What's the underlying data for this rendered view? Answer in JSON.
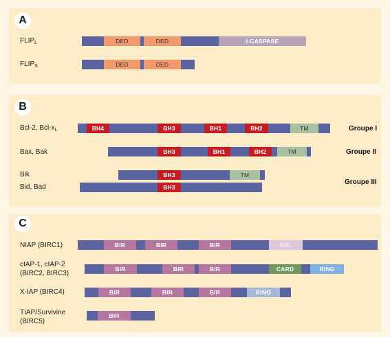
{
  "panels": {
    "a": {
      "letter": "A"
    },
    "b": {
      "letter": "B"
    },
    "c": {
      "letter": "C"
    }
  },
  "labels": {
    "flipl": {
      "main": "FLIP",
      "sub": "L"
    },
    "flips": {
      "main": "FLIP",
      "sub": "S"
    },
    "bcl2": {
      "main": "Bcl-2, Bcl-x",
      "sub": "L"
    },
    "bax": "Bax, Bak",
    "bik": "Bik",
    "bid": "Bid, Bad",
    "niap": "NIAP (BIRC1)",
    "ciap_1": "cIAP-1, cIAP-2",
    "ciap_2": "(BIRC2, BIRC3)",
    "xiap": "X-IAP (BIRC4)",
    "tiap_1": "TIAP/Survivine",
    "tiap_2": "(BIRC5)"
  },
  "groups": {
    "g1": "Groupe I",
    "g2": "Groupe II",
    "g3": "Groupe III"
  },
  "domains": {
    "ded": "DED",
    "icaspase": "I-CASPASE",
    "bh1": "BH1",
    "bh2": "BH2",
    "bh3": "BH3",
    "bh4": "BH4",
    "tm": "TM",
    "bir": "BIR",
    "nbl": "NBL",
    "card": "CARD",
    "ring": "RING"
  },
  "colors": {
    "background": "#fef6e4",
    "panel": "#fdecc8",
    "protein_backbone": "#5b64a0",
    "ded": "#f09a6e",
    "i_caspase": "#b6a4b4",
    "bh": "#c51c24",
    "tm": "#a9c1a0",
    "bir": "#b577a0",
    "nbl": "#dcc7dc",
    "card": "#6f9a5e",
    "ring": "#7fb2e0"
  }
}
